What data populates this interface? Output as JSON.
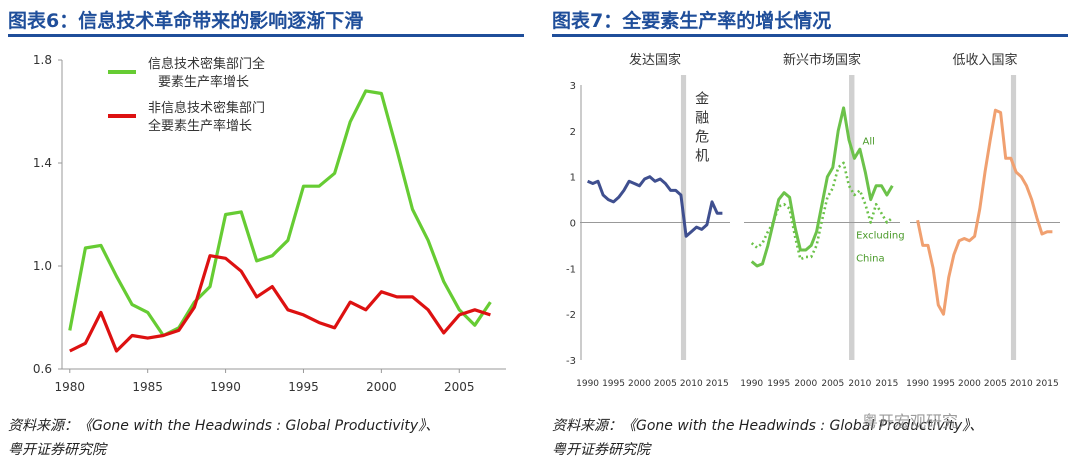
{
  "left_panel": {
    "title": "图表6：信息技术革命带来的影响逐渐下滑",
    "source_line1": "资料来源：《Gone with the Headwinds : Global Productivity》、",
    "source_line2": "粤开证券研究院"
  },
  "right_panel": {
    "title": "图表7：全要素生产率的增长情况",
    "source_line1": "资料来源：《Gone with the Headwinds : Global Productivity》、",
    "source_line2": "粤开证券研究院"
  },
  "watermark": "粤开宏观研究",
  "chart_data": [
    {
      "type": "line",
      "title": "",
      "xlabel": "",
      "ylabel": "",
      "xlim": [
        1979.5,
        2008
      ],
      "ylim": [
        0.6,
        1.8
      ],
      "xticks": [
        1980,
        1985,
        1990,
        1995,
        2000,
        2005
      ],
      "yticks": [
        0.6,
        1.0,
        1.4,
        1.8
      ],
      "ytick_labels": [
        "0.6",
        "1.0",
        "1.4",
        "1.8"
      ],
      "grid": false,
      "legend": "top-left",
      "series": [
        {
          "name": "信息技术密集部门全要素生产率增长",
          "legend_lines": [
            "信息技术密集部门全",
            "要素生产率增长"
          ],
          "color": "#66cc33",
          "x": [
            1980,
            1981,
            1982,
            1983,
            1984,
            1985,
            1986,
            1987,
            1988,
            1989,
            1990,
            1991,
            1992,
            1993,
            1994,
            1995,
            1996,
            1997,
            1998,
            1999,
            2000,
            2001,
            2002,
            2003,
            2004,
            2005,
            2006,
            2007
          ],
          "y": [
            0.75,
            1.07,
            1.08,
            0.96,
            0.85,
            0.82,
            0.73,
            0.76,
            0.86,
            0.92,
            1.2,
            1.21,
            1.02,
            1.04,
            1.1,
            1.31,
            1.31,
            1.36,
            1.56,
            1.68,
            1.67,
            1.45,
            1.22,
            1.1,
            0.94,
            0.83,
            0.77,
            0.86
          ]
        },
        {
          "name": "非信息技术密集部门全要素生产率增长",
          "legend_lines": [
            "非信息技术密集部门",
            "全要素生产率增长"
          ],
          "color": "#dd1111",
          "x": [
            1980,
            1981,
            1982,
            1983,
            1984,
            1985,
            1986,
            1987,
            1988,
            1989,
            1990,
            1991,
            1992,
            1993,
            1994,
            1995,
            1996,
            1997,
            1998,
            1999,
            2000,
            2001,
            2002,
            2003,
            2004,
            2005,
            2006,
            2007
          ],
          "y": [
            0.67,
            0.7,
            0.82,
            0.67,
            0.73,
            0.72,
            0.73,
            0.75,
            0.84,
            1.04,
            1.03,
            0.98,
            0.88,
            0.92,
            0.83,
            0.81,
            0.78,
            0.76,
            0.86,
            0.83,
            0.9,
            0.88,
            0.88,
            0.83,
            0.74,
            0.81,
            0.83,
            0.81
          ]
        }
      ]
    },
    {
      "type": "line",
      "title": "",
      "xlabel": "",
      "ylabel": "",
      "ylim": [
        -3,
        3
      ],
      "yticks": [
        3,
        2,
        1,
        0,
        -1,
        -2,
        -3
      ],
      "xticks": [
        1990,
        1995,
        2000,
        2005,
        2010,
        2015
      ],
      "crisis_band": [
        2008,
        2009
      ],
      "crisis_label": "金融危机",
      "panels": [
        {
          "label": "发达国家",
          "series": [
            {
              "name": "",
              "color": "#3f4f8f",
              "style": "solid",
              "x": [
                1990,
                1991,
                1992,
                1993,
                1994,
                1995,
                1996,
                1997,
                1998,
                1999,
                2000,
                2001,
                2002,
                2003,
                2004,
                2005,
                2006,
                2007,
                2008,
                2009,
                2010,
                2011,
                2012,
                2013,
                2014,
                2015,
                2016
              ],
              "y": [
                0.9,
                0.85,
                0.9,
                0.6,
                0.5,
                0.45,
                0.55,
                0.7,
                0.9,
                0.85,
                0.8,
                0.95,
                1.0,
                0.9,
                0.95,
                0.85,
                0.7,
                0.7,
                0.6,
                -0.3,
                -0.2,
                -0.1,
                -0.15,
                -0.05,
                0.45,
                0.2,
                0.2
              ]
            }
          ]
        },
        {
          "label": "新兴市场国家",
          "annotations": [
            "All",
            "Excluding",
            "China"
          ],
          "series": [
            {
              "name": "All",
              "color": "#6cc24a",
              "style": "solid",
              "x": [
                1990,
                1991,
                1992,
                1993,
                1994,
                1995,
                1996,
                1997,
                1998,
                1999,
                2000,
                2001,
                2002,
                2003,
                2004,
                2005,
                2006,
                2007,
                2008,
                2009,
                2010,
                2011,
                2012,
                2013,
                2014,
                2015,
                2016
              ],
              "y": [
                -0.85,
                -0.95,
                -0.9,
                -0.5,
                0.0,
                0.5,
                0.65,
                0.55,
                -0.1,
                -0.6,
                -0.6,
                -0.5,
                -0.2,
                0.4,
                1.0,
                1.2,
                2.0,
                2.5,
                1.8,
                1.4,
                1.6,
                1.1,
                0.5,
                0.8,
                0.8,
                0.6,
                0.8
              ]
            },
            {
              "name": "Excluding China",
              "color": "#6cc24a",
              "style": "dotted",
              "x": [
                1990,
                1991,
                1992,
                1993,
                1994,
                1995,
                1996,
                1997,
                1998,
                1999,
                2000,
                2001,
                2002,
                2003,
                2004,
                2005,
                2006,
                2007,
                2008,
                2009,
                2010,
                2011,
                2012,
                2013,
                2014,
                2015,
                2016
              ],
              "y": [
                -0.45,
                -0.55,
                -0.45,
                -0.2,
                0.0,
                0.35,
                0.4,
                0.3,
                -0.3,
                -0.8,
                -0.75,
                -0.75,
                -0.5,
                0.05,
                0.55,
                0.75,
                1.2,
                1.3,
                0.8,
                0.6,
                0.7,
                0.4,
                0.0,
                0.4,
                0.2,
                0.0,
                0.1
              ]
            }
          ]
        },
        {
          "label": "低收入国家",
          "series": [
            {
              "name": "",
              "color": "#f0a070",
              "style": "solid",
              "x": [
                1990,
                1991,
                1992,
                1993,
                1994,
                1995,
                1996,
                1997,
                1998,
                1999,
                2000,
                2001,
                2002,
                2003,
                2004,
                2005,
                2006,
                2007,
                2008,
                2009,
                2010,
                2011,
                2012,
                2013,
                2014,
                2015,
                2016
              ],
              "y": [
                0.05,
                -0.5,
                -0.5,
                -1.0,
                -1.8,
                -2.0,
                -1.2,
                -0.7,
                -0.4,
                -0.35,
                -0.4,
                -0.3,
                0.3,
                1.1,
                1.8,
                2.45,
                2.4,
                1.4,
                1.4,
                1.1,
                1.0,
                0.8,
                0.5,
                0.1,
                -0.25,
                -0.2,
                -0.2
              ]
            }
          ]
        }
      ]
    }
  ]
}
